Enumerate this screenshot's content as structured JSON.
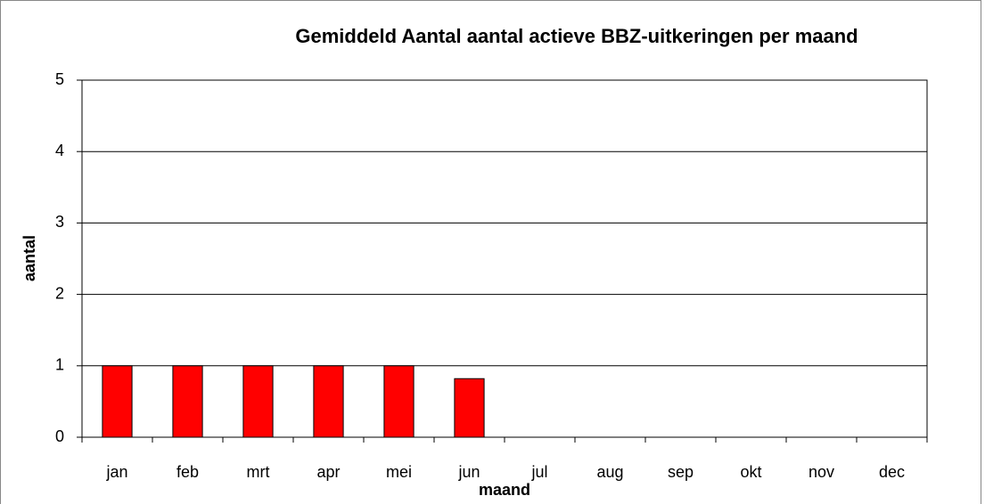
{
  "chart_data": {
    "type": "bar",
    "title": "Gemiddeld Aantal aantal actieve BBZ-uitkeringen per maand",
    "x_label": "maand",
    "y_label": "aantal",
    "categories": [
      "jan",
      "feb",
      "mrt",
      "apr",
      "mei",
      "jun",
      "jul",
      "aug",
      "sep",
      "okt",
      "nov",
      "dec"
    ],
    "values": [
      1,
      1,
      1,
      1,
      1,
      0.82,
      null,
      null,
      null,
      null,
      null,
      null
    ],
    "color": "#ff0000",
    "ylim": [
      0,
      5
    ],
    "yticks": [
      0,
      1,
      2,
      3,
      4,
      5
    ],
    "grid": true
  }
}
